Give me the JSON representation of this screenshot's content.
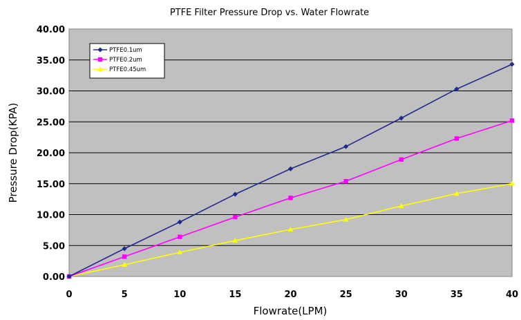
{
  "chart_data": {
    "type": "line",
    "title": "PTFE Filter Pressure Drop vs. Water Flowrate",
    "xlabel": "Flowrate(LPM)",
    "ylabel": "Pressure Drop(KPA)",
    "x": [
      0,
      5,
      10,
      15,
      20,
      25,
      30,
      35,
      40
    ],
    "xlim": [
      0,
      40
    ],
    "ylim": [
      0,
      40
    ],
    "x_ticks": [
      "0",
      "5",
      "10",
      "15",
      "20",
      "25",
      "30",
      "35",
      "40"
    ],
    "y_ticks": [
      "0.00",
      "5.00",
      "10.00",
      "15.00",
      "20.00",
      "25.00",
      "30.00",
      "35.00",
      "40.00"
    ],
    "grid": "horizontal",
    "plot_background": "#c0c0c0",
    "legend_position": "top-left",
    "series": [
      {
        "name": "PTFE0.1um",
        "color": "#1f2a8c",
        "marker": "diamond",
        "values": [
          0,
          4.5,
          8.8,
          13.3,
          17.4,
          21.0,
          25.6,
          30.3,
          34.3
        ]
      },
      {
        "name": "PTFE0.2um",
        "color": "#ff00ff",
        "marker": "square",
        "values": [
          0,
          3.2,
          6.4,
          9.6,
          12.7,
          15.4,
          18.9,
          22.3,
          25.2
        ]
      },
      {
        "name": "PTFE0.45um",
        "color": "#ffff00",
        "marker": "triangle",
        "values": [
          0,
          1.9,
          3.9,
          5.8,
          7.6,
          9.2,
          11.4,
          13.4,
          15.0
        ]
      }
    ]
  }
}
